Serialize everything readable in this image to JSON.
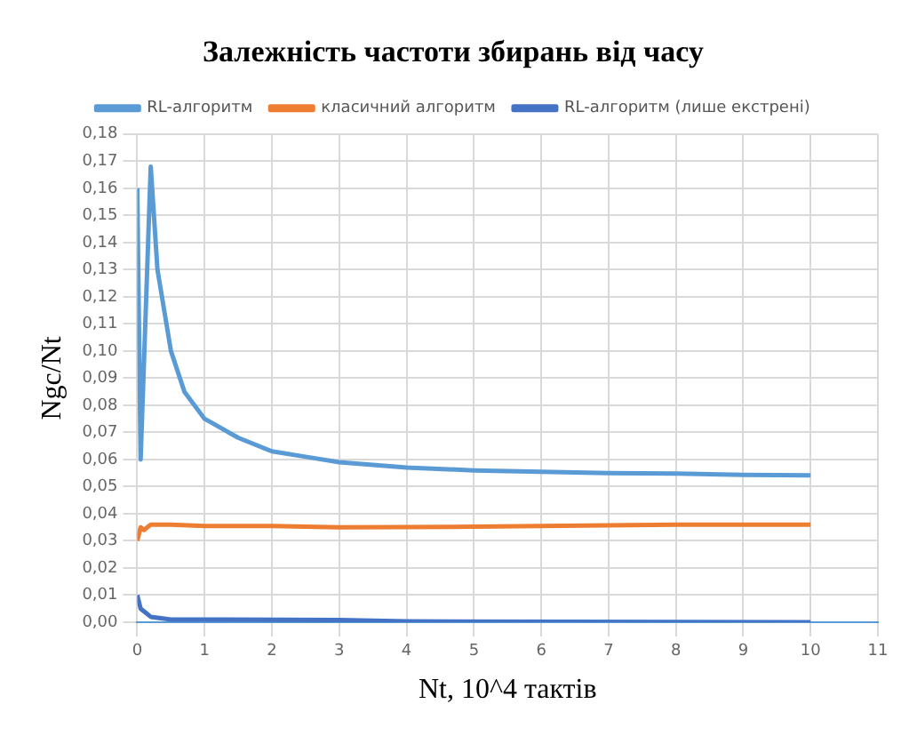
{
  "chart_data": {
    "type": "line",
    "title": "Залежність частоти збирань від часу",
    "xlabel": "Nt, 10^4 тактів",
    "ylabel": "Ngc/Nt",
    "xlim": [
      0,
      11
    ],
    "xticks": [
      0,
      1,
      2,
      3,
      4,
      5,
      6,
      7,
      8,
      9,
      10,
      11
    ],
    "ylim": [
      0,
      0.18
    ],
    "yticks": [
      {
        "value": 0,
        "label": "0,00"
      },
      {
        "value": 0.01,
        "label": "0,01"
      },
      {
        "value": 0.02,
        "label": "0,02"
      },
      {
        "value": 0.03,
        "label": "0,03"
      },
      {
        "value": 0.04,
        "label": "0,04"
      },
      {
        "value": 0.05,
        "label": "0,05"
      },
      {
        "value": 0.06,
        "label": "0,06"
      },
      {
        "value": 0.07,
        "label": "0,07"
      },
      {
        "value": 0.08,
        "label": "0,08"
      },
      {
        "value": 0.09,
        "label": "0,09"
      },
      {
        "value": 0.1,
        "label": "0,10"
      },
      {
        "value": 0.11,
        "label": "0,11"
      },
      {
        "value": 0.12,
        "label": "0,12"
      },
      {
        "value": 0.13,
        "label": "0,13"
      },
      {
        "value": 0.14,
        "label": "0,14"
      },
      {
        "value": 0.15,
        "label": "0,15"
      },
      {
        "value": 0.16,
        "label": "0,16"
      },
      {
        "value": 0.17,
        "label": "0,17"
      },
      {
        "value": 0.18,
        "label": "0,18"
      }
    ],
    "grid": true,
    "legend": "top",
    "marker": "none",
    "line_style": "solid",
    "series": [
      {
        "name": "RL-алгоритм",
        "color": "#5b9bd5",
        "x": [
          0,
          0.05,
          0.2,
          0.3,
          0.5,
          0.7,
          1,
          1.5,
          2,
          2.5,
          3,
          4,
          5,
          6,
          7,
          8,
          9,
          10
        ],
        "values": [
          0.16,
          0.06,
          0.168,
          0.13,
          0.1,
          0.085,
          0.075,
          0.068,
          0.063,
          0.061,
          0.059,
          0.057,
          0.056,
          0.0555,
          0.055,
          0.0548,
          0.0543,
          0.0542
        ]
      },
      {
        "name": "класичний алгоритм",
        "color": "#ed7d31",
        "x": [
          0,
          0.05,
          0.1,
          0.2,
          0.5,
          1,
          2,
          3,
          5,
          8,
          10
        ],
        "values": [
          0.03,
          0.035,
          0.034,
          0.036,
          0.036,
          0.0355,
          0.0355,
          0.035,
          0.0352,
          0.036,
          0.036
        ]
      },
      {
        "name": "RL-алгоритм (лише екстрені)",
        "color": "#4472c4",
        "x": [
          0,
          0.05,
          0.1,
          0.2,
          0.5,
          1,
          3,
          4,
          10
        ],
        "values": [
          0.01,
          0.005,
          0.004,
          0.002,
          0.001,
          0.001,
          0.0008,
          0.0003,
          0
        ]
      }
    ]
  }
}
